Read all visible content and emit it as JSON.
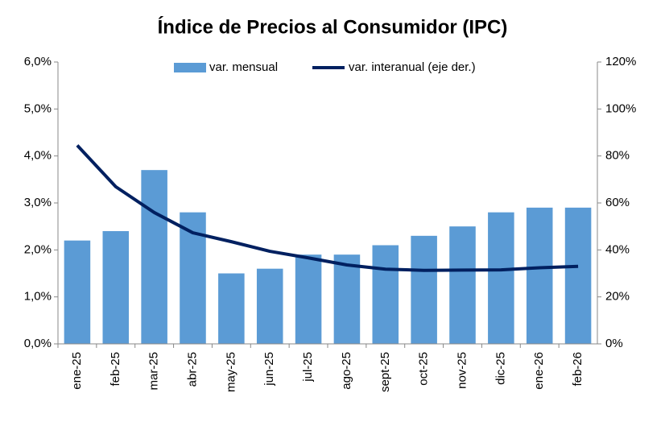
{
  "chart_data": {
    "type": "bar_line",
    "title": "Índice de Precios al Consumidor (IPC)",
    "categories": [
      "ene-25",
      "feb-25",
      "mar-25",
      "abr-25",
      "may-25",
      "jun-25",
      "jul-25",
      "ago-25",
      "sept-25",
      "oct-25",
      "nov-25",
      "dic-25",
      "ene-26",
      "feb-26"
    ],
    "series": [
      {
        "name": "var. mensual",
        "color": "#5b9bd5",
        "type": "bar",
        "values": [
          2.2,
          2.4,
          3.7,
          2.8,
          1.5,
          1.6,
          1.9,
          1.9,
          2.1,
          2.3,
          2.5,
          2.8,
          2.9,
          2.9
        ]
      },
      {
        "name": "var. interanual (eje der.)",
        "color": "#002060",
        "type": "line",
        "axis": "y2",
        "values": [
          84.5,
          66.9,
          55.9,
          47.3,
          43.5,
          39.4,
          36.6,
          33.6,
          31.8,
          31.3,
          31.4,
          31.5,
          32.4,
          33.0
        ]
      }
    ],
    "ylim": [
      0,
      6
    ],
    "yticks": [
      {
        "value": 0,
        "label": "0,0%"
      },
      {
        "value": 1,
        "label": "1,0%"
      },
      {
        "value": 2,
        "label": "2,0%"
      },
      {
        "value": 3,
        "label": "3,0%"
      },
      {
        "value": 4,
        "label": "4,0%"
      },
      {
        "value": 5,
        "label": "5,0%"
      },
      {
        "value": 6,
        "label": "6,0%"
      }
    ],
    "y2lim": [
      0,
      120
    ],
    "y2ticks": [
      {
        "value": 0,
        "label": "0%"
      },
      {
        "value": 20,
        "label": "20%"
      },
      {
        "value": 40,
        "label": "40%"
      },
      {
        "value": 60,
        "label": "60%"
      },
      {
        "value": 80,
        "label": "80%"
      },
      {
        "value": 100,
        "label": "100%"
      },
      {
        "value": 120,
        "label": "120%"
      }
    ],
    "legend": "top"
  }
}
